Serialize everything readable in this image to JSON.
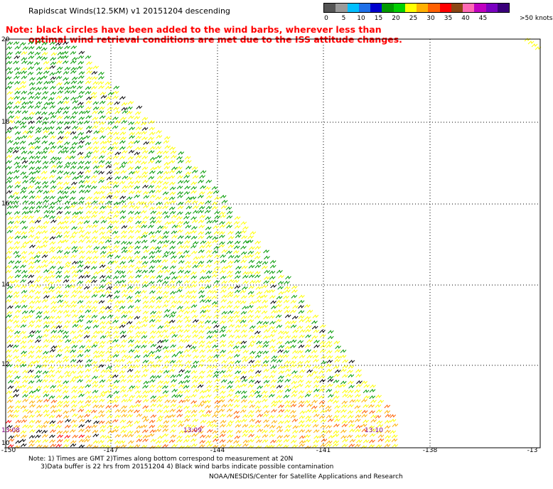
{
  "title": "Rapidscat Winds(12.5KM) v1 20151204 descending",
  "warning": {
    "line1": "Note: black circles have been added to the wind barbs, wherever less than",
    "line2": "optimal wind retrieval conditions are met due to the ISS attitude changes."
  },
  "legend": {
    "unit": ">50 knots",
    "labels": [
      "0",
      "5",
      "10",
      "15",
      "20",
      "25",
      "30",
      "35",
      "40",
      "45"
    ],
    "colors": [
      "#555555",
      "#9a9a9a",
      "#00bfff",
      "#1e6fe8",
      "#0000cd",
      "#009a00",
      "#00d000",
      "#ffff00",
      "#ffb000",
      "#ff6000",
      "#ff0000",
      "#8b4513",
      "#ff69b4",
      "#c000c0",
      "#7a00c0",
      "#3a007a"
    ]
  },
  "map": {
    "lat_labels": [
      "20",
      "18",
      "16",
      "14",
      "12",
      "10"
    ],
    "lon_labels": [
      "-150",
      "-147",
      "-144",
      "-141",
      "-138",
      "-13"
    ],
    "times": [
      "13:08",
      "13:09",
      "13:10"
    ]
  },
  "footnote": {
    "line1": "Note: 1) Times are GMT 2)Times along bottom correspond to measurement at 20N",
    "line2": "      3)Data buffer is 22 hrs from 20151204 4) Black wind barbs indicate possible contamination"
  },
  "credit": "NOAA/NESDIS/Center for Satellite Applications and Research"
}
